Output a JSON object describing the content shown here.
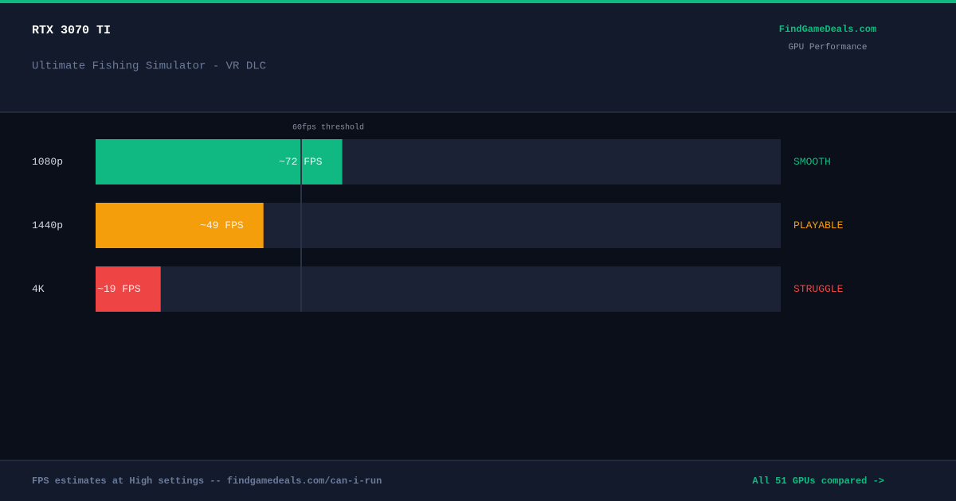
{
  "header": {
    "title": "RTX 3070 TI",
    "subtitle": "Ultimate Fishing Simulator - VR DLC",
    "brand": "FindGameDeals.com",
    "brand_subtitle": "GPU Performance"
  },
  "chart_data": {
    "type": "bar",
    "orientation": "horizontal",
    "categories": [
      "1080p",
      "1440p",
      "4K"
    ],
    "values": [
      72,
      49,
      19
    ],
    "value_labels": [
      "~72 FPS",
      "~49 FPS",
      "~19 FPS"
    ],
    "colors": [
      "#10b981",
      "#f59e0b",
      "#ef4444"
    ],
    "statuses": [
      "SMOOTH",
      "PLAYABLE",
      "STRUGGLE"
    ],
    "xlim": [
      0,
      200
    ],
    "threshold": {
      "value": 60,
      "label": "60fps threshold"
    }
  },
  "footer": {
    "note": "FPS estimates at High settings -- findgamedeals.com/can-i-run",
    "link": "All 51 GPUs compared ->"
  }
}
